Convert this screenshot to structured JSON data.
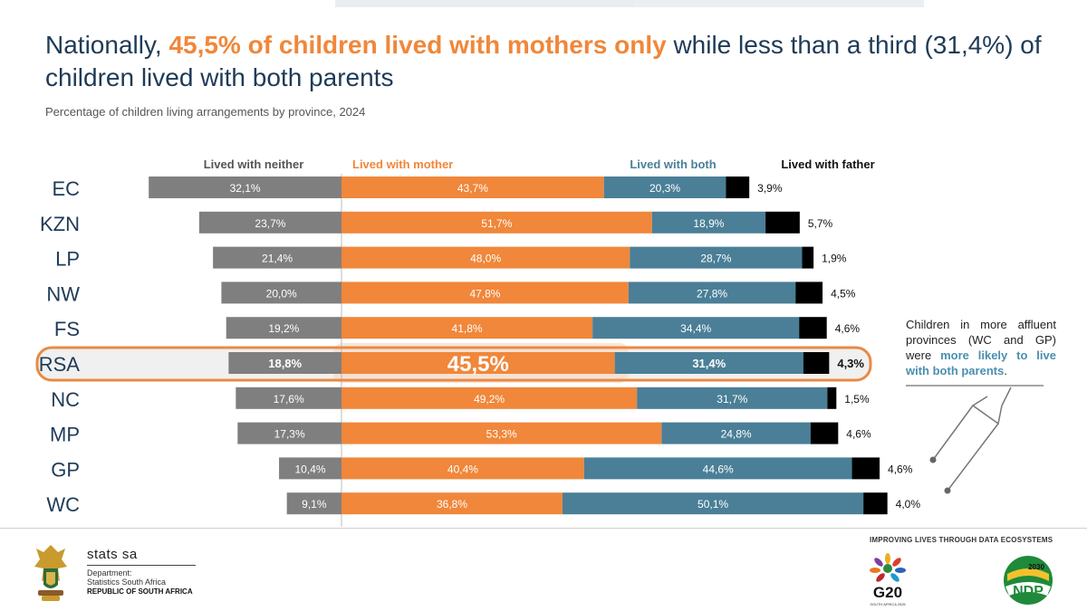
{
  "title": {
    "prefix": "Nationally, ",
    "highlight": "45,5% of children lived with mothers only",
    "suffix": " while less than a third (31,4%) of children lived with both parents"
  },
  "subtitle": "Percentage of children living arrangements by province, 2024",
  "colors": {
    "neither": "#7f7f7f",
    "mother": "#f0873a",
    "both": "#4a7f97",
    "father": "#000000",
    "rsa_outline": "#e98a44",
    "title": "#1f3b57"
  },
  "chart_data": {
    "type": "bar",
    "orientation": "horizontal",
    "stacked": true,
    "title": "Percentage of children living arrangements by province, 2024",
    "categories": [
      "EC",
      "KZN",
      "LP",
      "NW",
      "FS",
      "RSA",
      "NC",
      "MP",
      "GP",
      "WC"
    ],
    "highlight_category": "RSA",
    "series": [
      {
        "name": "Lived with neither",
        "values": [
          32.1,
          23.7,
          21.4,
          20.0,
          19.2,
          18.8,
          17.6,
          17.3,
          10.4,
          9.1
        ],
        "labels": [
          "32,1%",
          "23,7%",
          "21,4%",
          "20,0%",
          "19,2%",
          "18,8%",
          "17,6%",
          "17,3%",
          "10,4%",
          "9,1%"
        ]
      },
      {
        "name": "Lived with mother",
        "values": [
          43.7,
          51.7,
          48.0,
          47.8,
          41.8,
          45.5,
          49.2,
          53.3,
          40.4,
          36.8
        ],
        "labels": [
          "43,7%",
          "51,7%",
          "48,0%",
          "47,8%",
          "41,8%",
          "45,5%",
          "49,2%",
          "53,3%",
          "40,4%",
          "36,8%"
        ]
      },
      {
        "name": "Lived with both",
        "values": [
          20.3,
          18.9,
          28.7,
          27.8,
          34.4,
          31.4,
          31.7,
          24.8,
          44.6,
          50.1
        ],
        "labels": [
          "20,3%",
          "18,9%",
          "28,7%",
          "27,8%",
          "34,4%",
          "31,4%",
          "31,7%",
          "24,8%",
          "44,6%",
          "50,1%"
        ]
      },
      {
        "name": "Lived with father",
        "values": [
          3.9,
          5.7,
          1.9,
          4.5,
          4.6,
          4.3,
          1.5,
          4.6,
          4.6,
          4.0
        ],
        "labels": [
          "3,9%",
          "5,7%",
          "1,9%",
          "4,5%",
          "4,6%",
          "4,3%",
          "1,5%",
          "4,6%",
          "4,6%",
          "4,0%"
        ]
      }
    ],
    "legend_position": "top",
    "grid": false
  },
  "callout": {
    "pre": "Children in more affluent provinces (WC and GP) were ",
    "emphasis": "more likely to live with both parents",
    "post": "."
  },
  "footer": {
    "logo_name": "stats sa",
    "department": "Department:",
    "department_name": "Statistics South Africa",
    "republic": "REPUBLIC OF SOUTH AFRICA",
    "tagline": "IMPROVING LIVES THROUGH DATA ECOSYSTEMS",
    "g20_text": "G20",
    "g20_sub": "SOUTH AFRICA 2025",
    "ndp_year": "2030",
    "ndp_text": "NDP"
  }
}
